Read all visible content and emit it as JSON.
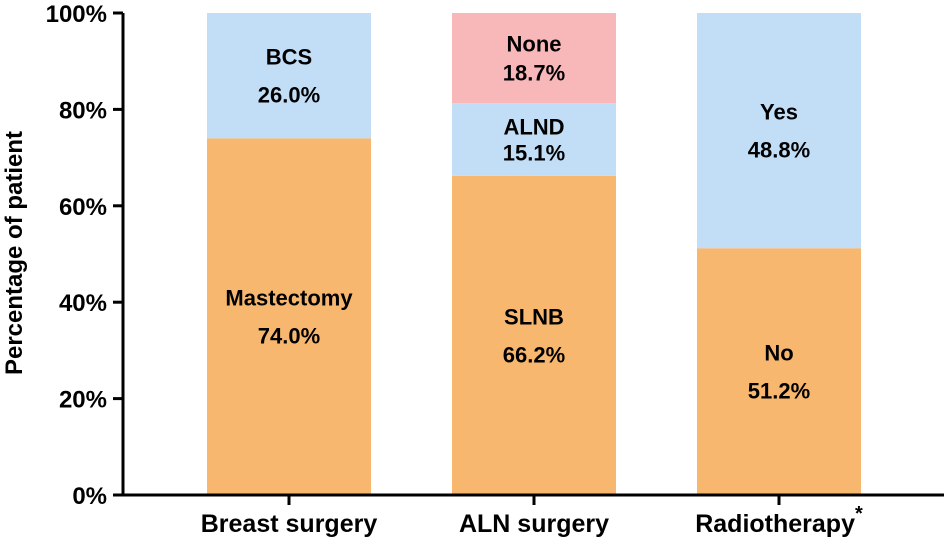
{
  "chart_data": {
    "type": "bar",
    "stacked": true,
    "title": "",
    "xlabel": "",
    "ylabel": "Percentage of patient",
    "ylim": [
      0,
      100
    ],
    "yticks": [
      "0%",
      "20%",
      "40%",
      "60%",
      "80%",
      "100%"
    ],
    "categories": [
      "Breast surgery",
      "ALN surgery",
      "Radiotherapy"
    ],
    "category_annotations": [
      "",
      "",
      "*"
    ],
    "colors": {
      "orange": "#F8B76E",
      "blue": "#C2DEF7",
      "pink": "#F8B8BA"
    },
    "stacks": [
      {
        "category": "Breast surgery",
        "segments": [
          {
            "name": "Mastectomy",
            "value": 74.0,
            "label": "74.0%",
            "color": "#F8B76E"
          },
          {
            "name": "BCS",
            "value": 26.0,
            "label": "26.0%",
            "color": "#C2DEF7"
          }
        ]
      },
      {
        "category": "ALN surgery",
        "segments": [
          {
            "name": "SLNB",
            "value": 66.2,
            "label": "66.2%",
            "color": "#F8B76E"
          },
          {
            "name": "ALND",
            "value": 15.1,
            "label": "15.1%",
            "color": "#C2DEF7"
          },
          {
            "name": "None",
            "value": 18.7,
            "label": "18.7%",
            "color": "#F8B8BA"
          }
        ]
      },
      {
        "category": "Radiotherapy",
        "segments": [
          {
            "name": "No",
            "value": 51.2,
            "label": "51.2%",
            "color": "#F8B76E"
          },
          {
            "name": "Yes",
            "value": 48.8,
            "label": "48.8%",
            "color": "#C2DEF7"
          }
        ]
      }
    ]
  }
}
